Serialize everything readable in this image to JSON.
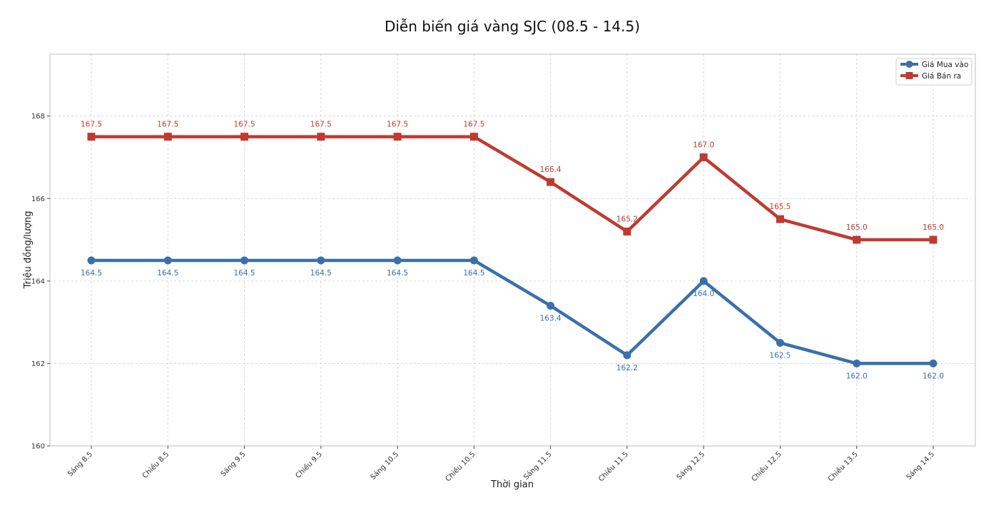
{
  "chart_data": {
    "type": "line",
    "title": "Diễn biến giá vàng SJC (08.5 - 14.5)",
    "xlabel": "Thời gian",
    "ylabel": "Triệu đồng/lượng",
    "categories": [
      "Sáng 8.5",
      "Chiều 8.5",
      "Sáng 9.5",
      "Chiều 9.5",
      "Sáng 10.5",
      "Chiều 10.5",
      "Sáng 11.5",
      "Chiều 11.5",
      "Sáng 12.5",
      "Chiều 12.5",
      "Chiều 13.5",
      "Sáng 14.5"
    ],
    "ylim": [
      160,
      169.5
    ],
    "yticks": [
      160,
      162,
      164,
      166,
      168
    ],
    "grid": true,
    "legend_position": "top-right",
    "series": [
      {
        "name": "Giá Mua vào",
        "color": "#3a70aa",
        "marker": "circle",
        "label_position": "below",
        "values": [
          164.5,
          164.5,
          164.5,
          164.5,
          164.5,
          164.5,
          163.4,
          162.2,
          164.0,
          162.5,
          162.0,
          162.0
        ]
      },
      {
        "name": "Giá Bán ra",
        "color": "#c03a32",
        "marker": "square",
        "label_position": "above",
        "values": [
          167.5,
          167.5,
          167.5,
          167.5,
          167.5,
          167.5,
          166.4,
          165.2,
          167.0,
          165.5,
          165.0,
          165.0
        ]
      }
    ]
  }
}
